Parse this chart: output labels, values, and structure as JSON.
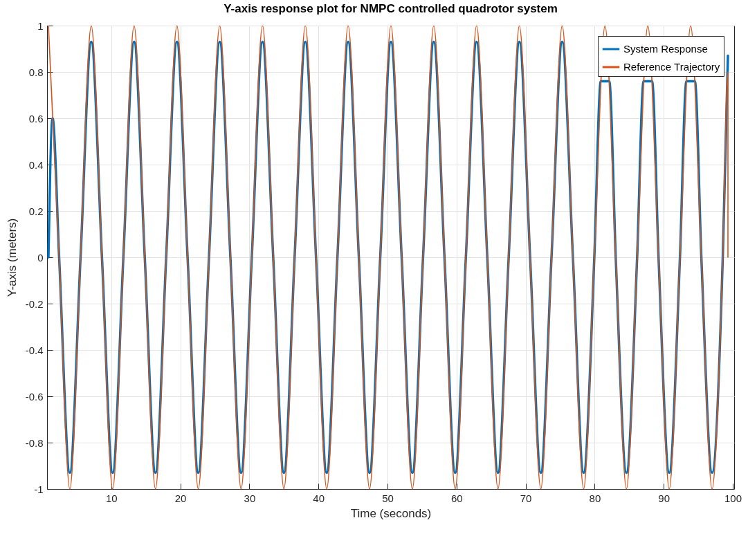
{
  "chart_data": {
    "type": "line",
    "title": "Y-axis response plot for NMPC controlled quadrotor system",
    "xlabel": "Time (seconds)",
    "ylabel": "Y-axis (meters)",
    "xlim": [
      0.7,
      100.2
    ],
    "xticks": [
      10,
      20,
      30,
      40,
      50,
      60,
      70,
      80,
      90,
      100
    ],
    "ylim": [
      -1,
      1
    ],
    "yticks": [
      -1,
      -0.8,
      -0.6,
      -0.4,
      -0.2,
      0,
      0.2,
      0.4,
      0.6,
      0.8,
      1
    ],
    "grid": true,
    "legend": "top right",
    "series": [
      {
        "name": "System Response",
        "color": "#0072bd",
        "x": [
          0.9,
          1.5,
          2.45,
          4.0,
          5.55,
          7.1,
          8.65,
          10.2,
          11.75,
          13.3,
          14.85,
          16.4,
          17.95,
          19.5,
          21.05,
          22.6,
          24.15,
          25.7,
          27.25,
          28.8,
          30.35,
          31.9,
          33.45,
          35.0,
          36.55,
          38.1,
          39.65,
          41.2,
          42.75,
          44.3,
          45.85,
          47.4,
          48.95,
          50.5,
          52.05,
          53.6,
          55.15,
          56.7,
          58.25,
          59.8,
          61.35,
          62.9,
          64.45,
          66.0,
          67.55,
          69.1,
          70.65,
          72.2,
          73.75,
          75.3,
          76.85,
          78.4,
          79.95,
          80.89,
          82.11,
          83.05,
          84.6,
          86.15,
          87.09,
          88.31,
          89.25,
          90.8,
          92.35,
          93.29,
          94.51,
          95.45,
          97.0,
          98.55,
          99.3
        ],
        "values": [
          0,
          0.6,
          0,
          -0.93,
          0,
          0.93,
          0,
          -0.93,
          0,
          0.93,
          0,
          -0.93,
          0,
          0.93,
          0,
          -0.93,
          0,
          0.93,
          0,
          -0.93,
          0,
          0.93,
          0,
          -0.93,
          0,
          0.93,
          0,
          -0.93,
          0,
          0.93,
          0,
          -0.93,
          0,
          0.93,
          0,
          -0.93,
          0,
          0.93,
          0,
          -0.93,
          0,
          0.93,
          0,
          -0.93,
          0,
          0.93,
          0,
          -0.93,
          0,
          0.93,
          0,
          -0.93,
          0,
          0.76,
          0.76,
          0,
          -0.93,
          0,
          0.76,
          0.76,
          0,
          -0.93,
          0,
          0.76,
          0.76,
          0,
          -0.93,
          0,
          0.87
        ]
      },
      {
        "name": "Reference Trajectory",
        "color": "#d95319",
        "x": [
          0.9,
          2.45,
          4.0,
          5.55,
          7.1,
          8.65,
          10.2,
          11.75,
          13.3,
          14.85,
          16.4,
          17.95,
          19.5,
          21.05,
          22.6,
          24.15,
          25.7,
          27.25,
          28.8,
          30.35,
          31.9,
          33.45,
          35.0,
          36.55,
          38.1,
          39.65,
          41.2,
          42.75,
          44.3,
          45.85,
          47.4,
          48.95,
          50.5,
          52.05,
          53.6,
          55.15,
          56.7,
          58.25,
          59.8,
          61.35,
          62.9,
          64.45,
          66.0,
          67.55,
          69.1,
          70.65,
          72.2,
          73.75,
          75.3,
          76.85,
          78.4,
          79.95,
          81.5,
          83.05,
          84.6,
          86.15,
          87.7,
          89.25,
          90.8,
          92.35,
          93.9,
          95.45,
          97.0,
          98.55,
          99.3,
          99.3
        ],
        "values": [
          1,
          0,
          -1,
          0,
          1,
          0,
          -1,
          0,
          1,
          0,
          -1,
          0,
          1,
          0,
          -1,
          0,
          1,
          0,
          -1,
          0,
          1,
          0,
          -1,
          0,
          1,
          0,
          -1,
          0,
          1,
          0,
          -1,
          0,
          1,
          0,
          -1,
          0,
          1,
          0,
          -1,
          0,
          1,
          0,
          -1,
          0,
          1,
          0,
          -1,
          0,
          1,
          0,
          -1,
          0,
          1,
          0,
          -1,
          0,
          1,
          0,
          -1,
          0,
          1,
          0,
          -1,
          0,
          0.8,
          0
        ]
      }
    ]
  }
}
